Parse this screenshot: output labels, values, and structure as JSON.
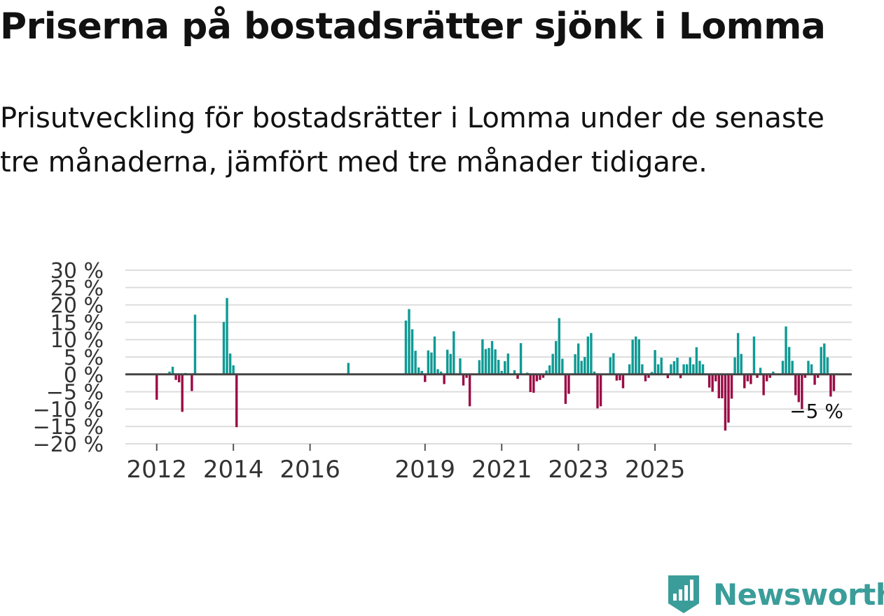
{
  "title": "Priserna på bostadsrätter sjönk i Lomma",
  "subtitle": "Prisutveckling för bostadsrätter i Lomma under de senaste tre månaderna, jämfört med tre månader tidigare.",
  "brand": {
    "name": "Newsworthy",
    "color": "#3a9d9a"
  },
  "colors": {
    "positive": "#0f9a94",
    "negative": "#9b0b45",
    "grid": "#dddddd",
    "zero": "#444444"
  },
  "chart_data": {
    "type": "bar",
    "title": "Priserna på bostadsrätter sjönk i Lomma",
    "xlabel": "",
    "ylabel": "",
    "ylim": [
      -20,
      30
    ],
    "yticks": [
      -20,
      -15,
      -10,
      -5,
      0,
      5,
      10,
      15,
      20,
      25,
      30
    ],
    "ytick_labels": [
      "−20 %",
      "−15 %",
      "−10 %",
      "−5 %",
      "0 %",
      "5 %",
      "10 %",
      "15 %",
      "20 %",
      "25 %",
      "30 %"
    ],
    "xticks": [
      {
        "index": 9,
        "label": "2012"
      },
      {
        "index": 33,
        "label": "2014"
      },
      {
        "index": 57,
        "label": "2016"
      },
      {
        "index": 93,
        "label": "2019"
      },
      {
        "index": 117,
        "label": "2021"
      },
      {
        "index": 141,
        "label": "2023"
      },
      {
        "index": 165,
        "label": "2025"
      }
    ],
    "end_label": "−5 %",
    "values": [
      null,
      null,
      null,
      null,
      null,
      null,
      null,
      null,
      null,
      -7.3,
      null,
      null,
      null,
      0.8,
      2.2,
      -1.6,
      -2.3,
      -10.8,
      0.4,
      null,
      -4.8,
      17.2,
      null,
      null,
      null,
      null,
      null,
      null,
      null,
      null,
      15.1,
      22.0,
      6.0,
      2.6,
      -15.2,
      null,
      null,
      null,
      null,
      null,
      null,
      null,
      null,
      null,
      null,
      null,
      null,
      null,
      null,
      null,
      null,
      null,
      null,
      null,
      null,
      null,
      null,
      null,
      null,
      null,
      null,
      null,
      null,
      null,
      null,
      null,
      null,
      null,
      null,
      3.3,
      null,
      null,
      null,
      null,
      null,
      null,
      null,
      null,
      null,
      null,
      null,
      null,
      null,
      null,
      null,
      null,
      null,
      15.5,
      18.8,
      13.0,
      6.8,
      2.0,
      1.0,
      -2.2,
      6.9,
      6.3,
      10.9,
      1.5,
      0.8,
      -2.8,
      7.1,
      5.9,
      12.4,
      null,
      4.6,
      -3.2,
      -1.0,
      -9.2,
      null,
      null,
      4.1,
      10.1,
      7.3,
      7.6,
      9.6,
      7.2,
      4.2,
      1.0,
      3.8,
      6.0,
      null,
      1.2,
      -1.3,
      9.0,
      null,
      0.5,
      -5.1,
      -5.3,
      -2.0,
      -1.6,
      -1.0,
      1.1,
      2.6,
      5.9,
      9.6,
      16.2,
      4.5,
      -8.5,
      -5.6,
      null,
      5.8,
      8.9,
      3.9,
      5.0,
      10.9,
      11.9,
      0.8,
      -9.8,
      -9.2,
      null,
      null,
      4.9,
      6.1,
      -1.8,
      -1.7,
      -4.0,
      null,
      2.9,
      10.0,
      10.9,
      10.1,
      2.9,
      -2.0,
      -1.0,
      0.7,
      7.0,
      2.9,
      4.8,
      null,
      -1.1,
      2.9,
      3.8,
      4.8,
      -1.1,
      2.9,
      2.9,
      4.9,
      2.9,
      7.8,
      3.9,
      2.9,
      null,
      -3.8,
      -5.0,
      -2.0,
      -6.9,
      -6.9,
      -16.2,
      -13.9,
      -7.0,
      4.9,
      11.9,
      5.9,
      -4.0,
      -2.0,
      -2.8,
      10.9,
      -1.0,
      1.9,
      -6.0,
      -2.0,
      -1.0,
      0.8,
      null,
      null,
      3.9,
      13.8,
      7.9,
      3.9,
      -6.0,
      -8.0,
      -10.0,
      -1.0,
      3.9,
      2.9,
      -3.0,
      -1.0,
      7.9,
      8.9,
      4.9,
      -6.4,
      -4.8
    ]
  }
}
